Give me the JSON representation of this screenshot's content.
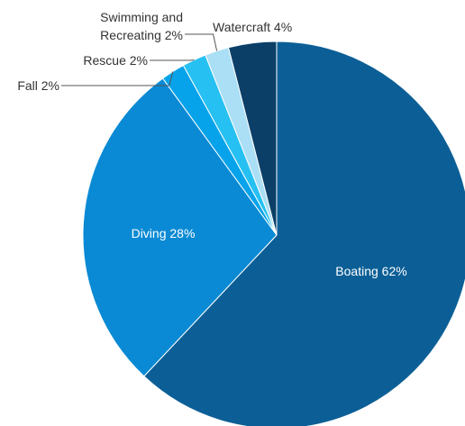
{
  "chart_data": {
    "type": "pie",
    "slices": [
      {
        "label": "Boating",
        "value": 62,
        "display": "Boating 62%",
        "color": "#0c5f96"
      },
      {
        "label": "Diving",
        "value": 28,
        "display": "Diving 28%",
        "color": "#0a8ad4"
      },
      {
        "label": "Fall",
        "value": 2,
        "display": "Fall 2%",
        "color": "#06a3ea"
      },
      {
        "label": "Rescue",
        "value": 2,
        "display": "Rescue 2%",
        "color": "#27c0f2"
      },
      {
        "label": "Swimming and Recreating",
        "value": 2,
        "display_lines": [
          "Swimming and",
          "Recreating 2%"
        ],
        "color": "#aadff6"
      },
      {
        "label": "Watercraft",
        "value": 4,
        "display": "Watercraft 4%",
        "color": "#0b3f68"
      }
    ],
    "start": "12 o'clock",
    "direction": "clockwise",
    "legend": "none",
    "labels": "inside for large slices, outside with leader lines for small slices"
  }
}
